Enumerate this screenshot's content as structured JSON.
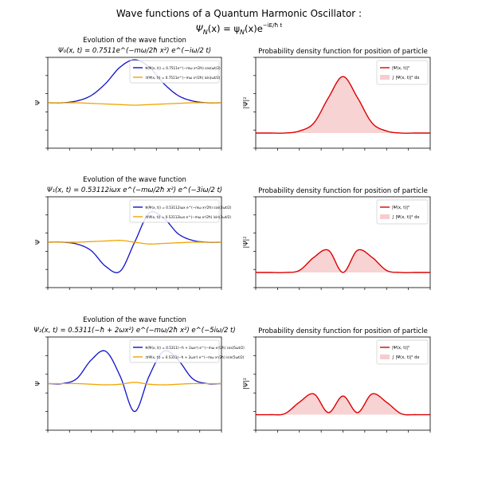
{
  "figure": {
    "title": "Wave functions of a Quantum Harmonic Oscillator :",
    "formula_lead": "Ψ",
    "formula_sub_n": "N",
    "formula_mid": "(x) = ψ",
    "formula_mid2": "(x)e",
    "formula_exp": "−iE/ħ t"
  },
  "colors": {
    "real": "#1010cc",
    "imag": "#f0a500",
    "density": "#dd0000",
    "fill": "#f4b6b8",
    "axis": "#000000"
  },
  "chart_data": [
    {
      "panel": "psi-0",
      "type": "line",
      "title": "Evolution of the wave function",
      "subtitle": "Ψ₀(x, t) = 0.7511e^(−mω/2ħ x²) e^(−iω/2 t)",
      "ylabel": "Ψ",
      "legend": [
        "ℜ(Ψ(x, t)) = 0.7511e^(−mω x²/2ħ) cos(ωt/2)",
        "ℑ(Ψ(x, t)) = 0.7511e^(−mω x²/2ħ) isin(ωt/2)"
      ],
      "legend_loc": "top-right",
      "x": [
        -3.0,
        -2.5,
        -2.0,
        -1.5,
        -1.0,
        -0.5,
        0.0,
        0.5,
        1.0,
        1.5,
        2.0,
        2.5,
        3.0
      ],
      "series": [
        {
          "values": [
            0.0,
            0.0,
            0.03,
            0.12,
            0.32,
            0.59,
            0.71,
            0.59,
            0.32,
            0.12,
            0.03,
            0.0,
            0.0
          ]
        },
        {
          "values": [
            0.0,
            0.0,
            0.0,
            -0.01,
            -0.02,
            -0.03,
            -0.04,
            -0.03,
            -0.02,
            -0.01,
            0.0,
            0.0,
            0.0
          ]
        }
      ]
    },
    {
      "panel": "pdf-0",
      "type": "area",
      "title": "Probability density function for position of particle",
      "ylabel": "|Ψ|²",
      "legend": [
        "|Ψ(x, t)|²",
        "∫ |Ψ(x, t)|² dx"
      ],
      "legend_loc": "top-right",
      "x": [
        -3.0,
        -2.5,
        -2.0,
        -1.5,
        -1.0,
        -0.5,
        0.0,
        0.5,
        1.0,
        1.5,
        2.0,
        2.5,
        3.0
      ],
      "series": [
        {
          "values": [
            0.0,
            0.0,
            0.0,
            0.02,
            0.1,
            0.35,
            0.56,
            0.35,
            0.1,
            0.02,
            0.0,
            0.0,
            0.0
          ]
        }
      ]
    },
    {
      "panel": "psi-1",
      "type": "line",
      "title": "Evolution of the wave function",
      "subtitle": "Ψ₁(x, t) = 0.53112iωx e^(−mω/2ħ x²) e^(−3iω/2 t)",
      "ylabel": "Ψ",
      "legend": [
        "ℜ(Ψ(x, t)) = 0.53112iωx e^(−mω x²/2ħ) cos(3ωt/2)",
        "ℑ(Ψ(x, t)) = 0.53112iωx e^(−mω x²/2ħ) isin(3ωt/2)"
      ],
      "legend_loc": "top-right",
      "x": [
        -3.0,
        -2.5,
        -2.0,
        -1.5,
        -1.0,
        -0.5,
        0.0,
        0.5,
        1.0,
        1.5,
        2.0,
        2.5,
        3.0
      ],
      "series": [
        {
          "values": [
            0.0,
            0.0,
            -0.03,
            -0.14,
            -0.4,
            -0.48,
            0.0,
            0.48,
            0.4,
            0.14,
            0.03,
            0.0,
            0.0
          ]
        },
        {
          "values": [
            0.0,
            0.0,
            0.0,
            0.01,
            0.02,
            0.03,
            0.0,
            -0.03,
            -0.02,
            -0.01,
            0.0,
            0.0,
            0.0
          ]
        }
      ]
    },
    {
      "panel": "pdf-1",
      "type": "area",
      "title": "Probability density function for position of particle",
      "ylabel": "|Ψ|²",
      "legend": [
        "|Ψ(x, t)|²",
        "∫ |Ψ(x, t)|² dx"
      ],
      "legend_loc": "top-right",
      "x": [
        -3.0,
        -2.5,
        -2.0,
        -1.5,
        -1.0,
        -0.5,
        0.0,
        0.5,
        1.0,
        1.5,
        2.0,
        2.5,
        3.0
      ],
      "series": [
        {
          "values": [
            0.0,
            0.0,
            0.0,
            0.02,
            0.15,
            0.22,
            0.0,
            0.22,
            0.15,
            0.02,
            0.0,
            0.0,
            0.0
          ]
        }
      ]
    },
    {
      "panel": "psi-2",
      "type": "line",
      "title": "Evolution of the wave function",
      "subtitle": "Ψ₂(x, t) = 0.5311(−ħ + 2ωx²) e^(−mω/2ħ x²) e^(−5iω/2 t)",
      "ylabel": "Ψ",
      "legend": [
        "ℜ(Ψ(x, t)) = 0.5311(−ħ + 2ωx²) e^(−mω x²/2ħ) cos(5ωt/2)",
        "ℑ(Ψ(x, t)) = 0.5311(−ħ + 2ωx²) e^(−mω x²/2ħ) isin(5ωt/2)"
      ],
      "legend_loc": "top-right",
      "x": [
        -3.0,
        -2.5,
        -2.0,
        -1.5,
        -1.0,
        -0.5,
        0.0,
        0.5,
        1.0,
        1.5,
        2.0,
        2.5,
        3.0
      ],
      "series": [
        {
          "values": [
            0.0,
            0.0,
            0.08,
            0.38,
            0.52,
            0.12,
            -0.45,
            0.12,
            0.52,
            0.38,
            0.08,
            0.0,
            0.0
          ]
        },
        {
          "values": [
            0.0,
            0.0,
            0.0,
            -0.01,
            -0.02,
            -0.01,
            0.02,
            -0.01,
            -0.02,
            -0.01,
            0.0,
            0.0,
            0.0
          ]
        }
      ]
    },
    {
      "panel": "pdf-2",
      "type": "area",
      "title": "Probability density function for position of particle",
      "ylabel": "|Ψ|²",
      "legend": [
        "|Ψ(x, t)|²",
        "∫ |Ψ(x, t)|² dx"
      ],
      "legend_loc": "top-right",
      "x": [
        -3.0,
        -2.5,
        -2.0,
        -1.5,
        -1.0,
        -0.5,
        0.0,
        0.5,
        1.0,
        1.5,
        2.0,
        2.5,
        3.0
      ],
      "series": [
        {
          "values": [
            0.0,
            0.0,
            0.01,
            0.12,
            0.2,
            0.02,
            0.18,
            0.02,
            0.2,
            0.12,
            0.01,
            0.0,
            0.0
          ]
        }
      ]
    }
  ]
}
